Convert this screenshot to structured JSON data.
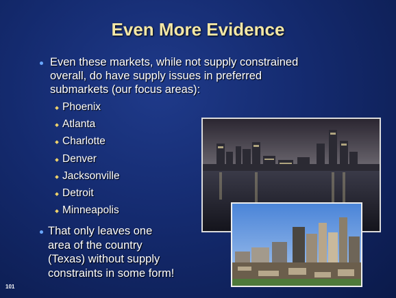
{
  "slide": {
    "title": "Even More Evidence",
    "bullets": [
      {
        "lines": [
          "Even these markets, while not supply constrained",
          "overall, do have supply issues in preferred",
          "submarkets (our focus areas):"
        ],
        "items": [
          "Phoenix",
          "Atlanta",
          "Charlotte",
          "Denver",
          "Jacksonville",
          "Detroit",
          "Minneapolis"
        ]
      },
      {
        "lines": [
          "That only leaves one",
          "area of the country",
          "(Texas) without supply",
          "constraints in some form!"
        ]
      }
    ],
    "page_number": "101"
  }
}
